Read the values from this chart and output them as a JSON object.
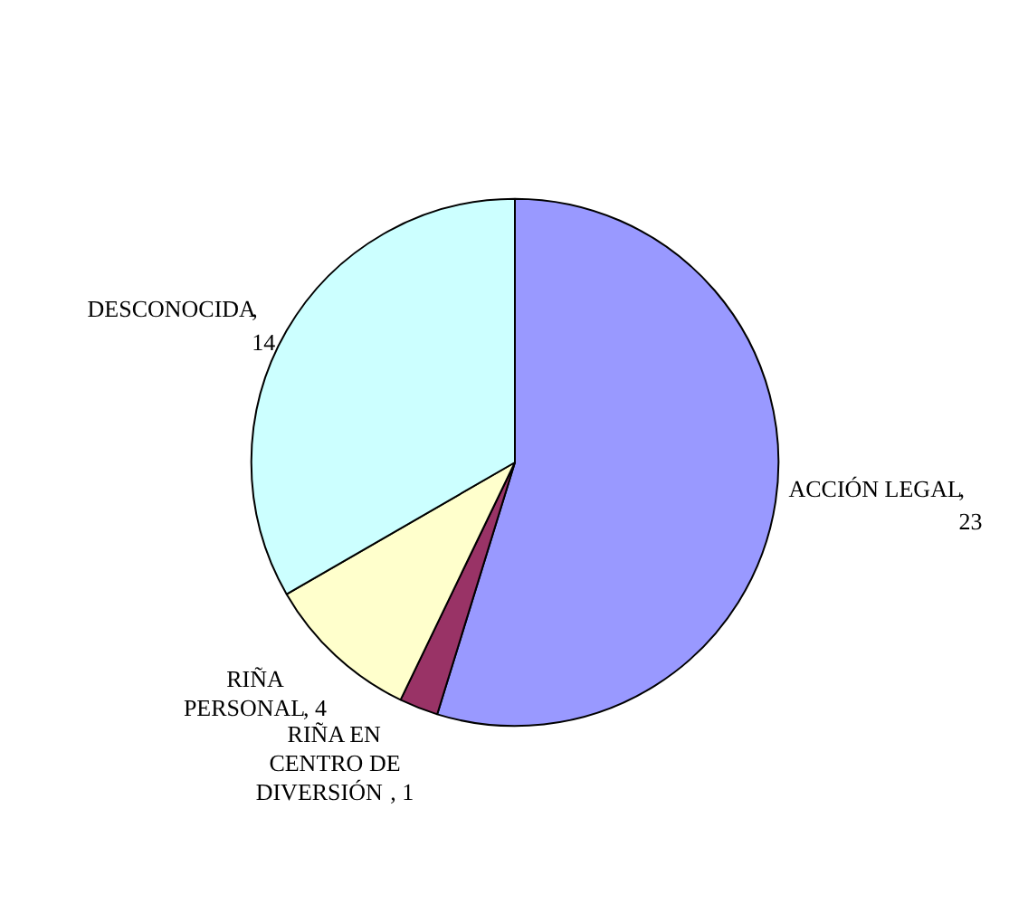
{
  "chart_data": {
    "type": "pie",
    "categories": [
      "ACCIÓN LEGAL",
      "RIÑA EN CENTRO DE DIVERSIÓN",
      "RIÑA PERSONAL",
      "DESCONOCIDA"
    ],
    "values": [
      23,
      1,
      4,
      14
    ],
    "value_labels": [
      ", 23",
      ", 1",
      ", 4",
      ", 14"
    ],
    "colors": [
      "#9999ff",
      "#993366",
      "#ffffcc",
      "#ccffff"
    ]
  }
}
